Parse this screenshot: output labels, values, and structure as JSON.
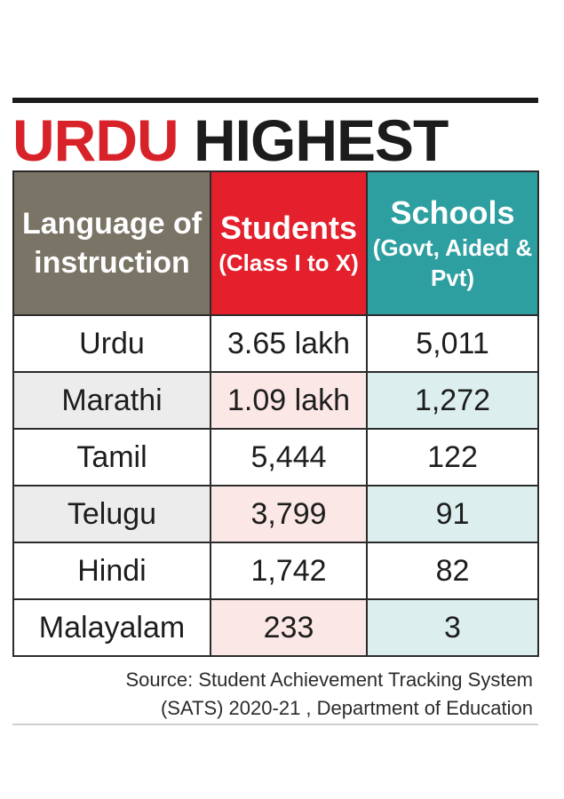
{
  "title": {
    "word1": "URDU",
    "word2": "HIGHEST"
  },
  "table": {
    "headers": {
      "language": "Language of instruction",
      "students_main": "Students",
      "students_sub": "(Class I to X)",
      "schools_main": "Schools",
      "schools_sub": "(Govt, Aided & Pvt)"
    },
    "rows": [
      {
        "language": "Urdu",
        "students": "3.65 lakh",
        "schools": "5,011"
      },
      {
        "language": "Marathi",
        "students": "1.09 lakh",
        "schools": "1,272"
      },
      {
        "language": "Tamil",
        "students": "5,444",
        "schools": "122"
      },
      {
        "language": "Telugu",
        "students": "3,799",
        "schools": "91"
      },
      {
        "language": "Hindi",
        "students": "1,742",
        "schools": "82"
      },
      {
        "language": "Malayalam",
        "students": "233",
        "schools": "3"
      }
    ]
  },
  "source": {
    "line1": "Source: Student Achievement Tracking System",
    "line2": "(SATS) 2020-21 , Department of Education"
  },
  "colors": {
    "title_red": "#d8222a",
    "header_gray": "#7a7466",
    "header_red": "#e3202b",
    "header_teal": "#2e9fa1"
  },
  "chart_data": {
    "type": "table",
    "title": "URDU HIGHEST",
    "columns": [
      "Language of instruction",
      "Students (Class I to X)",
      "Schools (Govt, Aided & Pvt)"
    ],
    "rows": [
      [
        "Urdu",
        "3.65 lakh",
        "5,011"
      ],
      [
        "Marathi",
        "1.09 lakh",
        "1,272"
      ],
      [
        "Tamil",
        "5,444",
        "122"
      ],
      [
        "Telugu",
        "3,799",
        "91"
      ],
      [
        "Hindi",
        "1,742",
        "82"
      ],
      [
        "Malayalam",
        "233",
        "3"
      ]
    ]
  }
}
